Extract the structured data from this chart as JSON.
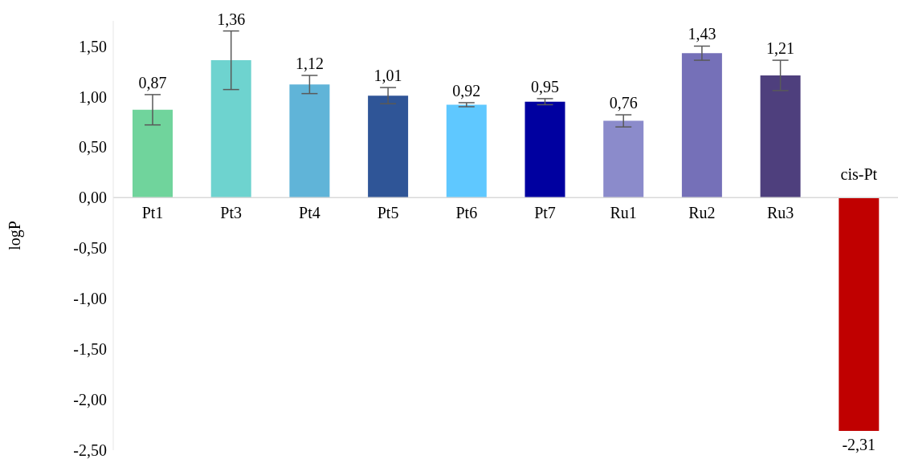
{
  "chart_data": {
    "type": "bar",
    "ylabel": "logP",
    "categories": [
      "Pt1",
      "Pt3",
      "Pt4",
      "Pt5",
      "Pt6",
      "Pt7",
      "Ru1",
      "Ru2",
      "Ru3",
      "cis-Pt"
    ],
    "values": [
      0.87,
      1.36,
      1.12,
      1.01,
      0.92,
      0.95,
      0.76,
      1.43,
      1.21,
      -2.31
    ],
    "errors": [
      0.15,
      0.29,
      0.09,
      0.08,
      0.02,
      0.03,
      0.06,
      0.07,
      0.15,
      null
    ],
    "value_labels": [
      "0,87",
      "1,36",
      "1,12",
      "1,01",
      "0,92",
      "0,95",
      "0,76",
      "1,43",
      "1,21",
      "-2,31"
    ],
    "colors": [
      "#70d49c",
      "#6ed3cf",
      "#60b4d8",
      "#2f5597",
      "#5fc8ff",
      "#0000a0",
      "#8b8bcb",
      "#7570b8",
      "#4e3f7d",
      "#c00000"
    ],
    "ylim": [
      -2.5,
      1.75
    ],
    "yticks": [
      {
        "value": -2.5,
        "label": "-2,50"
      },
      {
        "value": -2,
        "label": "-2,00"
      },
      {
        "value": -1.5,
        "label": "-1,50"
      },
      {
        "value": -1,
        "label": "-1,00"
      },
      {
        "value": -0.5,
        "label": "-0,50"
      },
      {
        "value": 0,
        "label": "0,00"
      },
      {
        "value": 0.5,
        "label": "0,50"
      },
      {
        "value": 1,
        "label": "1,00"
      },
      {
        "value": 1.5,
        "label": "1,50"
      }
    ],
    "grid": false,
    "legend": false
  }
}
